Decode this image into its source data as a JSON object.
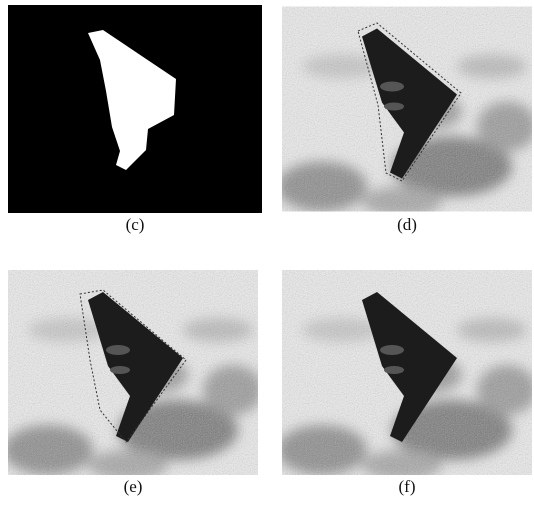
{
  "panels": [
    {
      "label": "(c)"
    },
    {
      "label": "(d)"
    },
    {
      "label": "(e)"
    },
    {
      "label": "(f)"
    }
  ]
}
